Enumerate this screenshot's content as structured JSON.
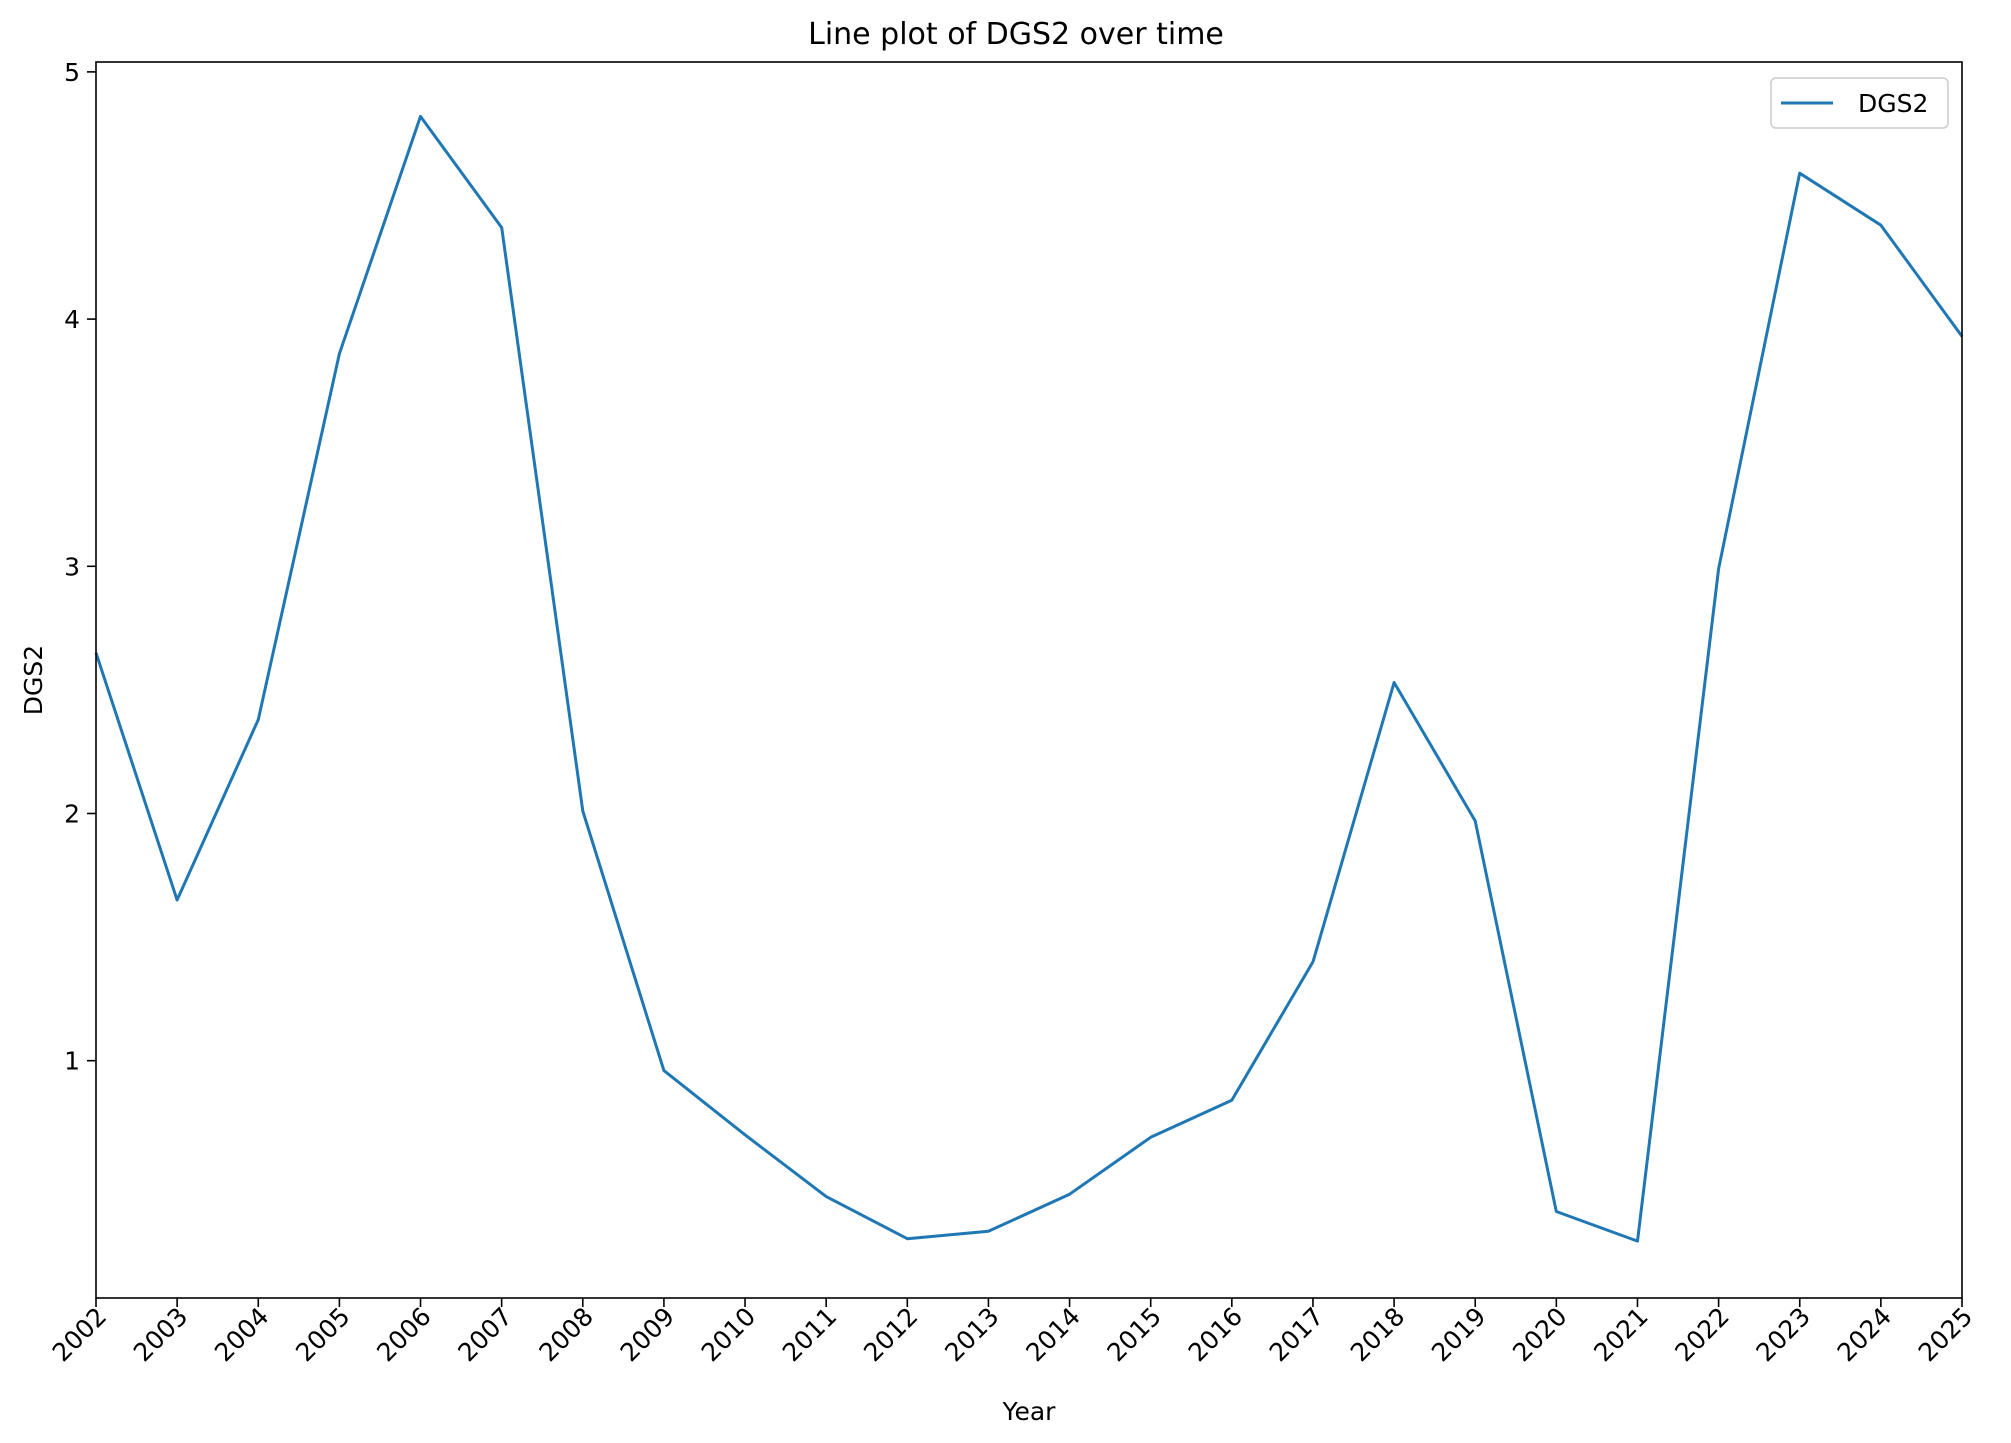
{
  "chart_data": {
    "type": "line",
    "title": "Line plot of DGS2 over time",
    "xlabel": "Year",
    "ylabel": "DGS2",
    "xlim": [
      2002,
      2025
    ],
    "ylim": [
      0.04,
      5.04
    ],
    "x_ticks": [
      "2002",
      "2003",
      "2004",
      "2005",
      "2006",
      "2007",
      "2008",
      "2009",
      "2010",
      "2011",
      "2012",
      "2013",
      "2014",
      "2015",
      "2016",
      "2017",
      "2018",
      "2019",
      "2020",
      "2021",
      "2022",
      "2023",
      "2024",
      "2025"
    ],
    "y_ticks": [
      1,
      2,
      3,
      4,
      5
    ],
    "grid": false,
    "legend": {
      "position": "top-right",
      "entries": [
        "DGS2"
      ]
    },
    "series": [
      {
        "name": "DGS2",
        "color": "#1f77b4",
        "x": [
          2002,
          2003,
          2004,
          2005,
          2006,
          2007,
          2008,
          2009,
          2010,
          2011,
          2012,
          2013,
          2014,
          2015,
          2016,
          2017,
          2018,
          2019,
          2020,
          2021,
          2022,
          2023,
          2024,
          2025
        ],
        "values": [
          2.65,
          1.65,
          2.38,
          3.86,
          4.82,
          4.37,
          2.01,
          0.96,
          0.7,
          0.45,
          0.28,
          0.31,
          0.46,
          0.69,
          0.84,
          1.4,
          2.53,
          1.97,
          0.39,
          0.27,
          2.99,
          4.59,
          4.38,
          3.93
        ]
      }
    ]
  }
}
